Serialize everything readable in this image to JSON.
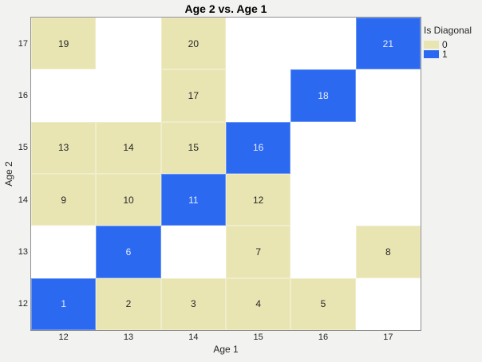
{
  "colors": {
    "page_background": "#f2f2f1",
    "plot_background": "#ffffff",
    "plot_border": "#8f8f8f",
    "cell_off_diagonal": "#e9e5b3",
    "cell_diagonal": "#2a69f0",
    "cell_text_dark": "#262626",
    "cell_text_light": "#e6ecfb",
    "axis_text": "#262626",
    "title_text": "#000000"
  },
  "chart_data": {
    "type": "heatmap",
    "title": "Age 2 vs. Age 1",
    "xlabel": "Age 1",
    "ylabel": "Age 2",
    "x_categories": [
      "12",
      "13",
      "14",
      "15",
      "16",
      "17"
    ],
    "y_categories": [
      "12",
      "13",
      "14",
      "15",
      "16",
      "17"
    ],
    "grid": "off",
    "legend": {
      "title": "Is Diagonal",
      "position": "right",
      "entries": [
        {
          "label": "0",
          "color": "#e9e5b3"
        },
        {
          "label": "1",
          "color": "#2a69f0"
        }
      ]
    },
    "cells": [
      {
        "x": 12,
        "y": 12,
        "value": 1,
        "is_diagonal": 1
      },
      {
        "x": 13,
        "y": 12,
        "value": 2,
        "is_diagonal": 0
      },
      {
        "x": 14,
        "y": 12,
        "value": 3,
        "is_diagonal": 0
      },
      {
        "x": 15,
        "y": 12,
        "value": 4,
        "is_diagonal": 0
      },
      {
        "x": 16,
        "y": 12,
        "value": 5,
        "is_diagonal": 0
      },
      {
        "x": 13,
        "y": 13,
        "value": 6,
        "is_diagonal": 1
      },
      {
        "x": 15,
        "y": 13,
        "value": 7,
        "is_diagonal": 0
      },
      {
        "x": 17,
        "y": 13,
        "value": 8,
        "is_diagonal": 0
      },
      {
        "x": 12,
        "y": 14,
        "value": 9,
        "is_diagonal": 0
      },
      {
        "x": 13,
        "y": 14,
        "value": 10,
        "is_diagonal": 0
      },
      {
        "x": 14,
        "y": 14,
        "value": 11,
        "is_diagonal": 1
      },
      {
        "x": 15,
        "y": 14,
        "value": 12,
        "is_diagonal": 0
      },
      {
        "x": 12,
        "y": 15,
        "value": 13,
        "is_diagonal": 0
      },
      {
        "x": 13,
        "y": 15,
        "value": 14,
        "is_diagonal": 0
      },
      {
        "x": 14,
        "y": 15,
        "value": 15,
        "is_diagonal": 0
      },
      {
        "x": 15,
        "y": 15,
        "value": 16,
        "is_diagonal": 1
      },
      {
        "x": 14,
        "y": 16,
        "value": 17,
        "is_diagonal": 0
      },
      {
        "x": 16,
        "y": 16,
        "value": 18,
        "is_diagonal": 1
      },
      {
        "x": 12,
        "y": 17,
        "value": 19,
        "is_diagonal": 0
      },
      {
        "x": 14,
        "y": 17,
        "value": 20,
        "is_diagonal": 0
      },
      {
        "x": 17,
        "y": 17,
        "value": 21,
        "is_diagonal": 1
      }
    ]
  }
}
